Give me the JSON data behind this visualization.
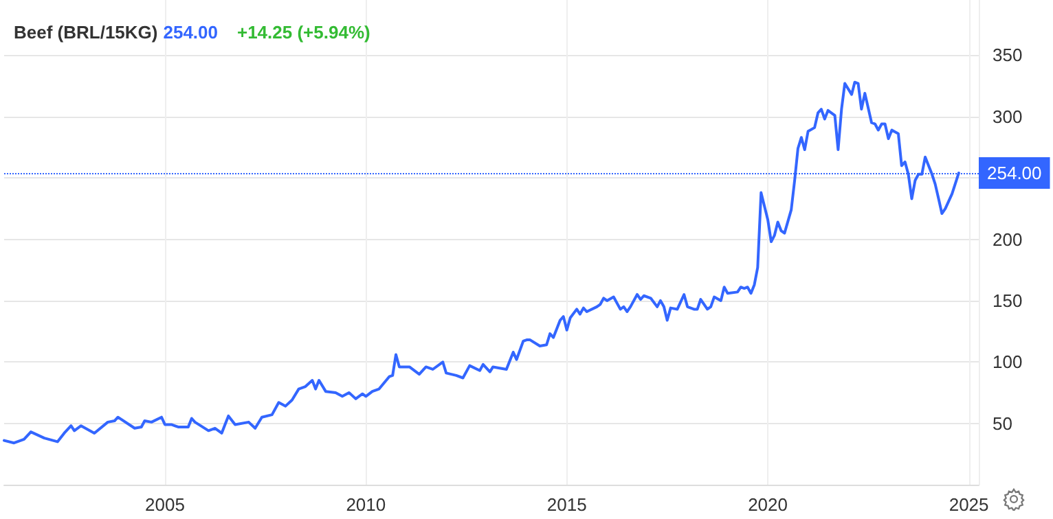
{
  "chart_data": {
    "type": "line",
    "title": "Beef (BRL/15KG)",
    "annotations": [
      "254.00",
      "+14.25 (+5.94%)"
    ],
    "x": [
      "2001-01",
      "2001-04",
      "2001-07",
      "2001-09",
      "2002-01",
      "2002-05",
      "2002-07",
      "2002-09",
      "2002-10",
      "2002-12",
      "2003-04",
      "2003-08",
      "2003-10",
      "2003-11",
      "2004-04",
      "2004-06",
      "2004-07",
      "2004-09",
      "2004-12",
      "2005-01",
      "2005-03",
      "2005-05",
      "2005-08",
      "2005-09",
      "2005-10",
      "2006-02",
      "2006-04",
      "2006-06",
      "2006-07",
      "2006-08",
      "2006-10",
      "2007-02",
      "2007-04",
      "2007-06",
      "2007-09",
      "2007-11",
      "2008-01",
      "2008-03",
      "2008-05",
      "2008-07",
      "2008-09",
      "2008-10",
      "2008-11",
      "2009-01",
      "2009-04",
      "2009-06",
      "2009-08",
      "2009-10",
      "2009-12",
      "2010-01",
      "2010-03",
      "2010-05",
      "2010-08",
      "2010-09",
      "2010-10",
      "2010-11",
      "2011-02",
      "2011-05",
      "2011-07",
      "2011-09",
      "2011-12",
      "2012-01",
      "2012-04",
      "2012-06",
      "2012-08",
      "2012-11",
      "2012-12",
      "2013-02",
      "2013-03",
      "2013-07",
      "2013-09",
      "2013-10",
      "2013-12",
      "2014-01",
      "2014-02",
      "2014-05",
      "2014-07",
      "2014-08",
      "2014-09",
      "2014-11",
      "2014-12",
      "2015-01",
      "2015-02",
      "2015-04",
      "2015-05",
      "2015-06",
      "2015-07",
      "2015-10",
      "2015-11",
      "2015-12",
      "2016-01",
      "2016-03",
      "2016-05",
      "2016-06",
      "2016-07",
      "2016-08",
      "2016-10",
      "2016-11",
      "2016-12",
      "2017-02",
      "2017-04",
      "2017-05",
      "2017-06",
      "2017-07",
      "2017-08",
      "2017-10",
      "2017-12",
      "2018-01",
      "2018-03",
      "2018-04",
      "2018-05",
      "2018-07",
      "2018-08",
      "2018-09",
      "2018-11",
      "2018-12",
      "2019-01",
      "2019-04",
      "2019-05",
      "2019-06",
      "2019-07",
      "2019-08",
      "2019-09",
      "2019-10",
      "2019-11",
      "2020-01",
      "2020-02",
      "2020-03",
      "2020-04",
      "2020-05",
      "2020-06",
      "2020-08",
      "2020-09",
      "2020-10",
      "2020-11",
      "2020-12",
      "2021-01",
      "2021-03",
      "2021-04",
      "2021-05",
      "2021-06",
      "2021-07",
      "2021-09",
      "2021-10",
      "2021-11",
      "2021-12",
      "2022-02",
      "2022-03",
      "2022-04",
      "2022-05",
      "2022-06",
      "2022-08",
      "2022-09",
      "2022-10",
      "2022-11",
      "2022-12",
      "2023-01",
      "2023-02",
      "2023-04",
      "2023-05",
      "2023-06",
      "2023-07",
      "2023-08",
      "2023-09",
      "2023-10",
      "2023-11",
      "2023-12",
      "2024-02",
      "2024-03",
      "2024-04",
      "2024-05",
      "2024-06",
      "2024-08",
      "2024-10"
    ],
    "series": [
      {
        "color": "#3366ff",
        "values": [
          36,
          34,
          37,
          43,
          38,
          35,
          42,
          48,
          44,
          48,
          42,
          51,
          52,
          55,
          46,
          47,
          52,
          51,
          55,
          49,
          49,
          47,
          47,
          54,
          51,
          44,
          46,
          42,
          49,
          56,
          49,
          51,
          46,
          55,
          57,
          67,
          64,
          69,
          78,
          80,
          85,
          78,
          85,
          76,
          75,
          72,
          75,
          70,
          74,
          72,
          76,
          78,
          88,
          89,
          106,
          96,
          96,
          90,
          96,
          94,
          100,
          91,
          89,
          87,
          97,
          93,
          98,
          92,
          96,
          94,
          108,
          102,
          117,
          118,
          118,
          113,
          114,
          123,
          120,
          134,
          137,
          126,
          136,
          143,
          139,
          144,
          141,
          145,
          147,
          152,
          150,
          153,
          143,
          145,
          141,
          145,
          155,
          151,
          154,
          152,
          145,
          150,
          145,
          134,
          144,
          143,
          155,
          145,
          143,
          143,
          151,
          143,
          145,
          153,
          150,
          161,
          156,
          157,
          161,
          160,
          161,
          156,
          163,
          177,
          238,
          216,
          198,
          203,
          214,
          207,
          205,
          224,
          248,
          274,
          283,
          273,
          288,
          291,
          303,
          306,
          298,
          305,
          301,
          273,
          306,
          327,
          318,
          328,
          327,
          306,
          319,
          295,
          294,
          289,
          294,
          294,
          282,
          289,
          286,
          260,
          263,
          253,
          233,
          248,
          253,
          253,
          267,
          253,
          245,
          233,
          221,
          225,
          237,
          254
        ]
      }
    ],
    "xlim": [
      "2001-01",
      "2025-04"
    ],
    "xticks": [
      "2005",
      "2010",
      "2015",
      "2020",
      "2025"
    ],
    "ylim": [
      0,
      395
    ],
    "yticks": [
      50,
      100,
      150,
      200,
      {
        "value": 250,
        "label": null
      },
      300,
      350
    ],
    "ref_lines": [
      {
        "axis": "y",
        "value": 254,
        "label": "254.00",
        "color": "#3366ff",
        "line_style": "dotted"
      }
    ],
    "grid": true,
    "marker": "none",
    "line_style": "solid"
  }
}
